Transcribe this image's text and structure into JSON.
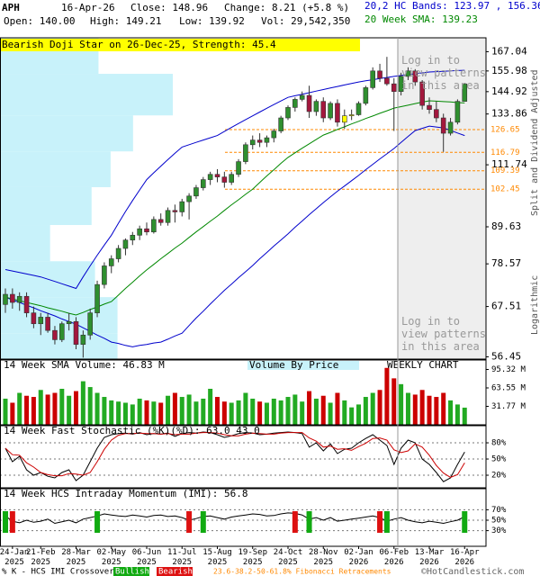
{
  "header": {
    "ticker": "APH",
    "date": "16-Apr-26",
    "close": "Close: 148.96",
    "change": "Change: 8.21 (+5.8 %)",
    "open": "Open: 140.00",
    "high": "High: 149.21",
    "low": "Low: 139.92",
    "volume": "Vol: 29,542,350"
  },
  "footer": {
    "legend": "% K - HCS IMI Crossover,",
    "bullish": "Bullish",
    "bearish": "Bearish",
    "fib": "23.6-38.2-50-61.8% Fibonacci Retracements",
    "copyright": "©HotCandlestick.com"
  },
  "chart_data": [
    {
      "type": "candlestick",
      "pattern": "Bearish Doji Star on 26-Dec-25, Strength: 45.4",
      "pattern_weeks": [
        48,
        49
      ],
      "pattern_color": "#ffff00",
      "watermark": "Log in to view patterns in this area",
      "chart_label": "WEEKLY CHART",
      "side_labels": [
        "Split and Dividend Adjusted",
        "Logarithmic"
      ],
      "categories": [
        null,
        "24-Jan 2025",
        null,
        null,
        null,
        "21-Feb 2025",
        null,
        null,
        null,
        null,
        "28-Mar 2025",
        null,
        null,
        null,
        null,
        "02-May 2025",
        null,
        null,
        null,
        null,
        "06-Jun 2025",
        null,
        null,
        null,
        null,
        "11-Jul 2025",
        null,
        null,
        null,
        null,
        "15-Aug 2025",
        null,
        null,
        null,
        null,
        "19-Sep 2025",
        null,
        null,
        null,
        null,
        "24-Oct 2025",
        null,
        null,
        null,
        null,
        "28-Nov 2025",
        null,
        null,
        null,
        null,
        "02-Jan 2026",
        null,
        null,
        null,
        null,
        "06-Feb 2026",
        null,
        null,
        null,
        null,
        "13-Mar 2026",
        null,
        null,
        null,
        null,
        "16-Apr 2026"
      ],
      "ohlc": [
        [
          68,
          72,
          66,
          70.5
        ],
        [
          70.5,
          72,
          67,
          68.5
        ],
        [
          68.5,
          71,
          66.5,
          70
        ],
        [
          70,
          71,
          65,
          66
        ],
        [
          66,
          67.5,
          62.5,
          63.5
        ],
        [
          63.5,
          66,
          61,
          65
        ],
        [
          65,
          66,
          61.5,
          62
        ],
        [
          62,
          63,
          59,
          60
        ],
        [
          60,
          64,
          59.5,
          63.5
        ],
        [
          63.5,
          66,
          62,
          64
        ],
        [
          64,
          65,
          58,
          59
        ],
        [
          59,
          62,
          56.3,
          61
        ],
        [
          61,
          67,
          60,
          66
        ],
        [
          66,
          74,
          65,
          73
        ],
        [
          73,
          79,
          72,
          78
        ],
        [
          78,
          81,
          76,
          80
        ],
        [
          80,
          84,
          79,
          83
        ],
        [
          83,
          86,
          81,
          85.5
        ],
        [
          85.5,
          88,
          84,
          87
        ],
        [
          87,
          90,
          85.5,
          89
        ],
        [
          89,
          91,
          87,
          88
        ],
        [
          88,
          93,
          87.5,
          92
        ],
        [
          92,
          94,
          90,
          91
        ],
        [
          91,
          96,
          90,
          95
        ],
        [
          95,
          97,
          91,
          94.5
        ],
        [
          94.5,
          99,
          93,
          98
        ],
        [
          98,
          101,
          92,
          100
        ],
        [
          100,
          104,
          99,
          103
        ],
        [
          103,
          107,
          102,
          106
        ],
        [
          106,
          109,
          104,
          108
        ],
        [
          108,
          110,
          105,
          107
        ],
        [
          107,
          109,
          103,
          105
        ],
        [
          105,
          109,
          104,
          108
        ],
        [
          108,
          114,
          107,
          113
        ],
        [
          113,
          121,
          112,
          120
        ],
        [
          120,
          124,
          118,
          122
        ],
        [
          122,
          125,
          119,
          121
        ],
        [
          121,
          124,
          119,
          123
        ],
        [
          123,
          127,
          121,
          126
        ],
        [
          126,
          133,
          125,
          132
        ],
        [
          132,
          138,
          131,
          137
        ],
        [
          137,
          142,
          135,
          141
        ],
        [
          141,
          145,
          140,
          143
        ],
        [
          143,
          148,
          132,
          135
        ],
        [
          135,
          141,
          133,
          140
        ],
        [
          140,
          142,
          130,
          132
        ],
        [
          132,
          140,
          131,
          139
        ],
        [
          139,
          141,
          128,
          130
        ],
        [
          130,
          136,
          127,
          133
        ],
        [
          133,
          136,
          131,
          133.5
        ],
        [
          133.5,
          140,
          133,
          139
        ],
        [
          139,
          148,
          138,
          147
        ],
        [
          147,
          158,
          146,
          156
        ],
        [
          156,
          160,
          150,
          152
        ],
        [
          152,
          164,
          148,
          149
        ],
        [
          149,
          152,
          126,
          145
        ],
        [
          145,
          155,
          143,
          153
        ],
        [
          153,
          158,
          151,
          156
        ],
        [
          156,
          157,
          148,
          150
        ],
        [
          150,
          151,
          136,
          138
        ],
        [
          138,
          142,
          134,
          136
        ],
        [
          136,
          140,
          130,
          132
        ],
        [
          132,
          134,
          117,
          125
        ],
        [
          125,
          132,
          124,
          130
        ],
        [
          130,
          141,
          129,
          140
        ],
        [
          140.0,
          149.21,
          139.92,
          148.96
        ]
      ],
      "up_color": "#2f8f2f",
      "down_color": "#a3173d",
      "series": [
        {
          "name": "20,2 HC Bands: 123.97 , 156.36",
          "color": "#0000cc",
          "values": [
            77,
            76.6,
            76.2,
            75.8,
            75.4,
            75,
            74.4,
            73.8,
            73.2,
            72.6,
            72,
            75,
            78,
            81,
            84,
            87,
            90.8,
            94.6,
            98.4,
            102.2,
            106,
            108.6,
            111.2,
            113.8,
            116.4,
            119,
            120,
            121,
            122,
            123,
            124,
            125.8,
            127.6,
            129.4,
            131.2,
            133,
            134.8,
            136.6,
            138.4,
            140.2,
            142,
            142.8,
            143.6,
            144.4,
            145.2,
            146,
            146.8,
            147.6,
            148.4,
            149.2,
            150,
            150.6,
            151.2,
            151.8,
            152.4,
            153,
            153.5,
            154,
            154.4,
            154.9,
            155.4,
            155.6,
            155.8,
            156,
            156.2,
            156.36
          ]
        },
        {
          "color": "#0000cc",
          "values": [
            69.8,
            69.1,
            68.5,
            67.8,
            67.2,
            66.5,
            65.9,
            65.3,
            64.6,
            64,
            63.4,
            62.6,
            61.8,
            61.0,
            60.3,
            59.5,
            59.2,
            58.8,
            58.5,
            58.8,
            59,
            59.3,
            59.5,
            60.1,
            60.8,
            61.4,
            63.1,
            64.8,
            66.4,
            68.1,
            69.8,
            71.5,
            73.1,
            74.8,
            76.4,
            78.1,
            80,
            81.8,
            83.7,
            85.5,
            87.4,
            89.5,
            91.5,
            93.6,
            95.6,
            97.7,
            99.7,
            101.7,
            103.6,
            105.6,
            107.6,
            109.8,
            111.9,
            114.1,
            116.2,
            118.4,
            121,
            123.6,
            126.2,
            127.2,
            128.2,
            127.8,
            127.4,
            126.3,
            125.1,
            123.97
          ]
        },
        {
          "name": "20 Week SMA: 139.23",
          "color": "#008800",
          "values": [
            69.8,
            69.4,
            68.9,
            68.5,
            68.1,
            67.7,
            67.2,
            66.8,
            66.4,
            65.9,
            65.5,
            66.1,
            66.8,
            67.4,
            68.1,
            68.7,
            70.3,
            72,
            73.6,
            75.3,
            76.9,
            78.4,
            80,
            81.5,
            83.1,
            84.6,
            86.3,
            88,
            89.7,
            91.4,
            93.1,
            95,
            96.9,
            98.7,
            100.6,
            102.5,
            104.9,
            107.4,
            109.8,
            112.3,
            114.7,
            116.6,
            118.5,
            120.4,
            122.3,
            124.2,
            125.4,
            126.7,
            127.9,
            129.2,
            130.4,
            131.7,
            132.9,
            134.2,
            135.4,
            136.7,
            137.4,
            138.1,
            138.9,
            139.6,
            140.3,
            140.1,
            139.9,
            139.7,
            139.4,
            139.23
          ]
        }
      ],
      "fib_levels": [
        126.65,
        116.79,
        109.39,
        102.45
      ],
      "fib_color": "#ff8800",
      "volume_by_price": {
        "label": "Volume By Price",
        "bins": [
          175.5,
          154.4,
          133.2,
          117.2,
          103.2,
          90.2,
          79.3,
          69.8,
          61.4,
          56
        ],
        "values": [
          57,
          100,
          77,
          64,
          53,
          29,
          55,
          68,
          68
        ],
        "color": "#c8f2fa"
      },
      "ylim": [
        56,
        175.5
      ],
      "log_scale": true,
      "yticks": [
        167.04,
        155.98,
        144.92,
        133.86,
        111.74,
        89.63,
        78.57,
        67.51,
        56.45
      ]
    },
    {
      "type": "bar",
      "title": "14 Week SMA Volume: 46.83 M",
      "values": [
        45,
        38,
        55,
        50,
        48,
        60,
        52,
        55,
        62,
        50,
        58,
        75,
        65,
        55,
        48,
        42,
        40,
        38,
        35,
        45,
        42,
        40,
        38,
        50,
        55,
        48,
        52,
        40,
        45,
        62,
        48,
        40,
        38,
        42,
        55,
        45,
        40,
        38,
        45,
        42,
        48,
        52,
        40,
        58,
        45,
        50,
        38,
        55,
        42,
        30,
        35,
        48,
        55,
        60,
        98,
        80,
        70,
        55,
        52,
        60,
        50,
        48,
        55,
        42,
        35,
        29.54
      ],
      "ylim": [
        0,
        111.6
      ],
      "yticks": [
        {
          "value": 95.32,
          "label": "95.32 M"
        },
        {
          "value": 63.55,
          "label": "63.55 M"
        },
        {
          "value": 31.77,
          "label": "31.77 M"
        }
      ]
    },
    {
      "type": "line",
      "title": "14 Week Fast Stochastic (%K)(%D): 63.0 43.0",
      "series": [
        {
          "color": "#000000",
          "values": [
            70,
            45,
            55,
            30,
            20,
            25,
            18,
            15,
            25,
            30,
            10,
            20,
            45,
            70,
            90,
            95,
            97,
            98,
            96,
            99,
            95,
            97,
            96,
            98,
            92,
            97,
            99,
            98,
            100,
            99,
            95,
            90,
            93,
            97,
            99,
            98,
            95,
            96,
            98,
            99,
            100,
            99,
            97,
            72,
            80,
            65,
            78,
            60,
            68,
            70,
            80,
            88,
            95,
            85,
            75,
            40,
            70,
            85,
            80,
            50,
            40,
            25,
            8,
            15,
            40,
            63.0
          ]
        },
        {
          "color": "#cc0000",
          "values": [
            70,
            58,
            57,
            43,
            35,
            25,
            21,
            19,
            19,
            23,
            22,
            20,
            25,
            45,
            68,
            85,
            94,
            97,
            97,
            98,
            97,
            97,
            96,
            97,
            95,
            96,
            96,
            98,
            99,
            99,
            98,
            95,
            93,
            93,
            96,
            98,
            97,
            96,
            96,
            98,
            99,
            99,
            99,
            89,
            83,
            72,
            74,
            68,
            69,
            66,
            73,
            79,
            88,
            89,
            85,
            67,
            62,
            65,
            78,
            72,
            57,
            38,
            24,
            16,
            21,
            43.0
          ]
        }
      ],
      "ylim": [
        -3.3,
        111.7
      ],
      "grid": true,
      "yticks": [
        {
          "value": 80,
          "label": "80%"
        },
        {
          "value": 50,
          "label": "50%"
        },
        {
          "value": 20,
          "label": "20%"
        }
      ]
    },
    {
      "type": "line",
      "title": "14 Week HCS Intraday Momentum (IMI): 56.8",
      "series": [
        {
          "color": "#000000",
          "values": [
            58,
            48,
            45,
            50,
            46,
            48,
            52,
            44,
            47,
            50,
            45,
            52,
            55,
            58,
            62,
            60,
            58,
            57,
            60,
            58,
            56,
            59,
            60,
            57,
            58,
            55,
            50,
            53,
            57,
            58,
            55,
            52,
            56,
            58,
            60,
            62,
            61,
            58,
            59,
            62,
            64,
            63,
            60,
            52,
            55,
            50,
            55,
            48,
            50,
            52,
            54,
            56,
            58,
            55,
            48,
            52,
            55,
            50,
            47,
            45,
            48,
            46,
            44,
            47,
            50,
            56.8
          ]
        }
      ],
      "bullish_weeks": [
        0,
        13,
        28,
        43,
        54,
        65
      ],
      "bearish_weeks": [
        1,
        26,
        41,
        53
      ],
      "bullish_color": "#11aa11",
      "bearish_color": "#dd1111",
      "ylim": [
        0,
        110.3
      ],
      "grid": true,
      "yticks": [
        {
          "value": 70,
          "label": "70%"
        },
        {
          "value": 50,
          "label": "50%"
        },
        {
          "value": 30,
          "label": "30%"
        }
      ]
    }
  ]
}
